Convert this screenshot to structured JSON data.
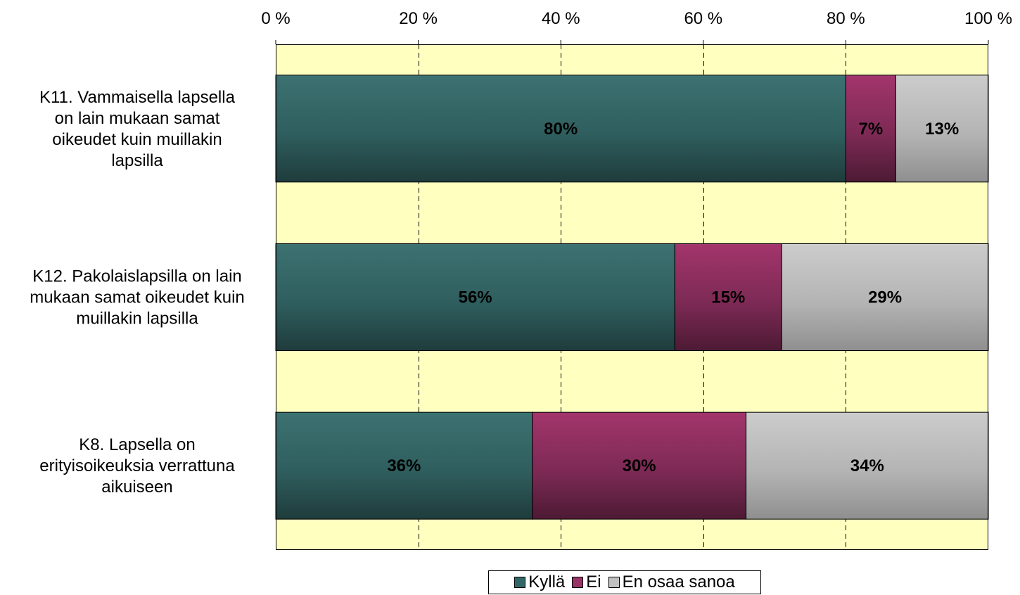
{
  "chart_data": {
    "type": "bar",
    "orientation": "horizontal",
    "stacked": "percent",
    "categories": [
      "K11. Vammaisella lapsella on lain mukaan samat oikeudet kuin muillakin lapsilla",
      "K12. Pakolaislapsilla on lain mukaan samat oikeudet kuin muillakin lapsilla",
      "K8. Lapsella on erityisoikeuksia verrattuna aikuiseen"
    ],
    "category_lines": [
      [
        "K11. Vammaisella lapsella",
        "on lain mukaan samat",
        "oikeudet kuin muillakin",
        "lapsilla"
      ],
      [
        "K12. Pakolaislapsilla on lain",
        "mukaan samat oikeudet kuin",
        "muillakin lapsilla"
      ],
      [
        "K8. Lapsella on",
        "erityisoikeuksia verrattuna",
        "aikuiseen"
      ]
    ],
    "series": [
      {
        "name": "Kyllä",
        "values": [
          80,
          56,
          36
        ],
        "color": "#336666"
      },
      {
        "name": "Ei",
        "values": [
          7,
          15,
          30
        ],
        "color": "#993366"
      },
      {
        "name": "En osaa sanoa",
        "values": [
          13,
          29,
          34
        ],
        "color": "#C0C0C0"
      }
    ],
    "data_labels": [
      [
        "80%",
        "56%",
        "36%"
      ],
      [
        "7%",
        "15%",
        "30%"
      ],
      [
        "13%",
        "29%",
        "34%"
      ]
    ],
    "xaxis": {
      "range": [
        0,
        100
      ],
      "ticks": [
        0,
        20,
        40,
        60,
        80,
        100
      ],
      "tick_labels": [
        "0 %",
        "20 %",
        "40 %",
        "60 %",
        "80 %",
        "100 %"
      ],
      "position": "top"
    },
    "grid": "vertical dashed",
    "plot_background": "#FFFFC0",
    "legend": {
      "position": "bottom-center",
      "items": [
        "Kyllä",
        "Ei",
        "En osaa sanoa"
      ]
    }
  }
}
